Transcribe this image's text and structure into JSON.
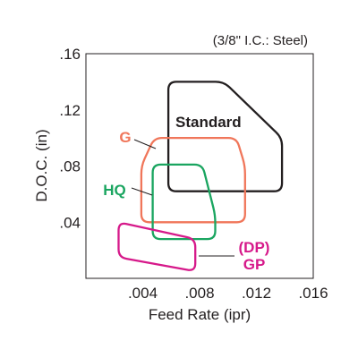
{
  "chart_data": {
    "type": "area",
    "annotation": "(3/8\" I.C.: Steel)",
    "xlabel": "Feed Rate (ipr)",
    "ylabel": "D.O.C. (in)",
    "xlim": [
      0,
      0.016
    ],
    "ylim": [
      0,
      0.16
    ],
    "x_tick_labels": [
      ".004",
      ".008",
      ".012",
      ".016"
    ],
    "y_tick_labels": [
      ".04",
      ".08",
      ".12",
      ".16"
    ],
    "series": [
      {
        "name": "Standard",
        "color": "#231f20",
        "outline": [
          [
            0.0058,
            0.14
          ],
          [
            0.0097,
            0.14
          ],
          [
            0.0138,
            0.1
          ],
          [
            0.0138,
            0.062
          ],
          [
            0.0058,
            0.062
          ]
        ]
      },
      {
        "name": "G",
        "color": "#f0765a",
        "outline": [
          [
            0.0048,
            0.1
          ],
          [
            0.0106,
            0.1
          ],
          [
            0.0112,
            0.08
          ],
          [
            0.0112,
            0.04
          ],
          [
            0.0039,
            0.04
          ],
          [
            0.0039,
            0.08
          ]
        ]
      },
      {
        "name": "HQ",
        "color": "#1aa560",
        "outline": [
          [
            0.0047,
            0.081
          ],
          [
            0.0082,
            0.081
          ],
          [
            0.0091,
            0.045
          ],
          [
            0.0091,
            0.028
          ],
          [
            0.0047,
            0.028
          ]
        ]
      },
      {
        "name": "(DP)\nGP",
        "color": "#d6198a",
        "outline": [
          [
            0.0023,
            0.04
          ],
          [
            0.0077,
            0.028
          ],
          [
            0.0077,
            0.005
          ],
          [
            0.0023,
            0.015
          ]
        ]
      }
    ]
  }
}
